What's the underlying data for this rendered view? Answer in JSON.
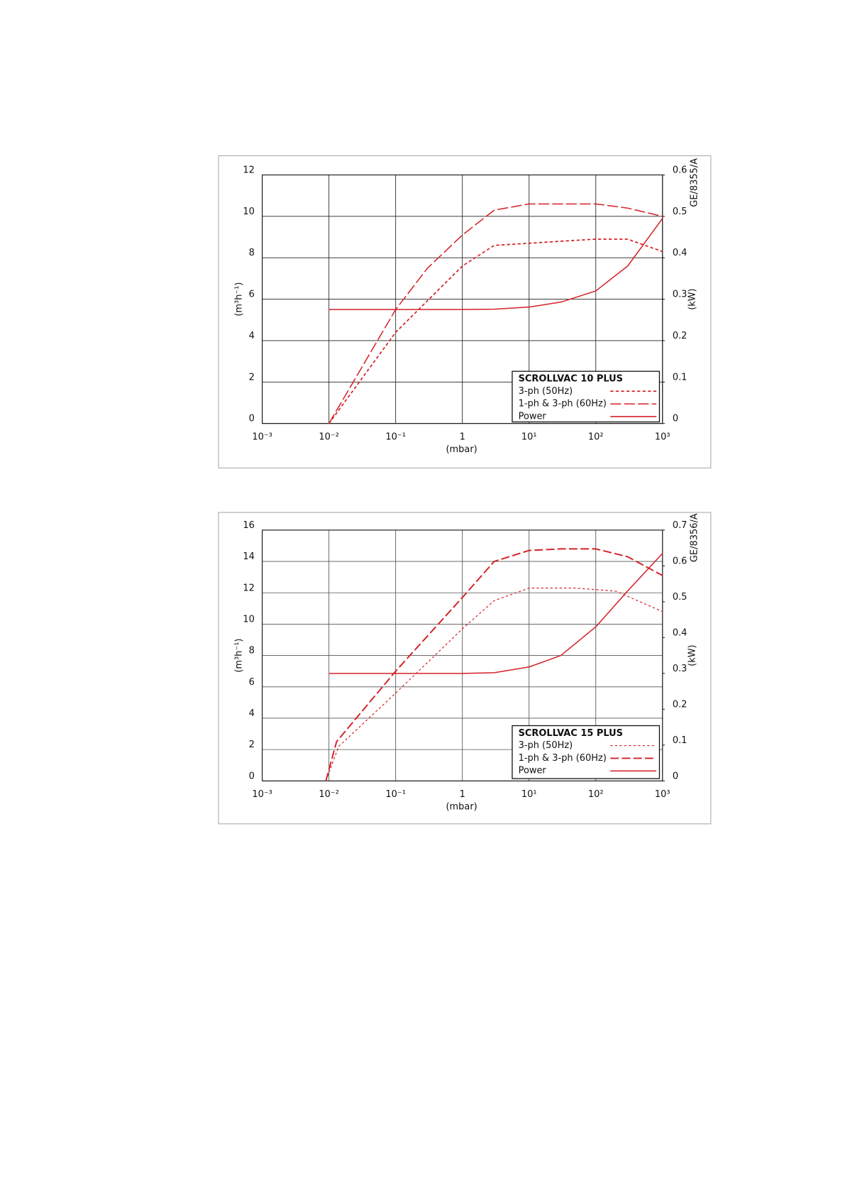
{
  "chart_data": [
    {
      "type": "line",
      "legend_title": "SCROLLVAC 10 PLUS",
      "code": "GE/8355/A",
      "xlabel": "(mbar)",
      "ylabel": "(m³h⁻¹)",
      "y2label": "(kW)",
      "log_x": true,
      "grid": true,
      "legend": "lower right",
      "xlim": [
        0.001,
        1000
      ],
      "xticks": [
        {
          "value": 0.001,
          "label": "10⁻³"
        },
        {
          "value": 0.01,
          "label": "10⁻²"
        },
        {
          "value": 0.1,
          "label": "10⁻¹"
        },
        1,
        {
          "value": 10,
          "label": "10¹"
        },
        {
          "value": 100,
          "label": "10²"
        },
        {
          "value": 1000,
          "label": "10³"
        }
      ],
      "ylim": [
        0,
        12
      ],
      "yticks": [
        0,
        2,
        4,
        6,
        8,
        10,
        12
      ],
      "y2lim": [
        0,
        0.6
      ],
      "y2ticks": [
        0,
        0.1,
        0.2,
        0.3,
        0.4,
        0.5,
        0.6
      ],
      "series": [
        {
          "name": "3-ph (50Hz)",
          "color": "#d42027",
          "x": [
            0.01,
            0.1,
            1,
            3,
            10,
            30,
            100,
            300,
            1000
          ],
          "values": [
            0,
            4.4,
            7.6,
            8.6,
            8.7,
            8.8,
            8.9,
            8.9,
            8.3
          ]
        },
        {
          "name": "1-ph & 3-ph (60Hz)",
          "color": "#d42027",
          "x": [
            0.01,
            0.1,
            0.3,
            1,
            3,
            10,
            100,
            300,
            1000
          ],
          "values": [
            0,
            5.5,
            7.5,
            9.1,
            10.3,
            10.6,
            10.6,
            10.4,
            10.0
          ]
        },
        {
          "name": "Power",
          "color": "#d42027",
          "axis": "y2",
          "x": [
            0.01,
            1,
            3,
            10,
            30,
            100,
            300,
            1000
          ],
          "values": [
            0.275,
            0.275,
            0.276,
            0.281,
            0.293,
            0.32,
            0.38,
            0.495
          ]
        }
      ]
    },
    {
      "type": "line",
      "legend_title": "SCROLLVAC 15 PLUS",
      "code": "GE/8356/A",
      "xlabel": "(mbar)",
      "ylabel": "(m³h⁻¹)",
      "y2label": "(kW)",
      "log_x": true,
      "grid": true,
      "legend": "lower right",
      "xlim": [
        0.001,
        1000
      ],
      "xticks": [
        {
          "value": 0.001,
          "label": "10⁻³"
        },
        {
          "value": 0.01,
          "label": "10⁻²"
        },
        {
          "value": 0.1,
          "label": "10⁻¹"
        },
        1,
        {
          "value": 10,
          "label": "10¹"
        },
        {
          "value": 100,
          "label": "10²"
        },
        {
          "value": 1000,
          "label": "10³"
        }
      ],
      "ylim": [
        0,
        16
      ],
      "yticks": [
        0,
        2,
        4,
        6,
        8,
        10,
        12,
        14,
        16
      ],
      "y2lim": [
        0,
        0.7
      ],
      "y2ticks": [
        0,
        0.1,
        0.2,
        0.3,
        0.4,
        0.5,
        0.6,
        0.7
      ],
      "series": [
        {
          "name": "3-ph (50Hz)",
          "color": "#d42027",
          "x": [
            0.009,
            0.014,
            0.1,
            1,
            3,
            10,
            50,
            200,
            1000
          ],
          "values": [
            0,
            2.2,
            5.6,
            9.7,
            11.5,
            12.3,
            12.3,
            12.1,
            10.8
          ]
        },
        {
          "name": "1-ph & 3-ph (60Hz)",
          "color": "#d42027",
          "x": [
            0.009,
            0.013,
            0.1,
            1,
            3,
            10,
            30,
            100,
            300,
            1000
          ],
          "values": [
            0,
            2.5,
            7,
            11.7,
            14.0,
            14.7,
            14.8,
            14.8,
            14.3,
            13.1
          ]
        },
        {
          "name": "Power",
          "color": "#d42027",
          "axis": "y2",
          "x": [
            0.01,
            1,
            3,
            10,
            30,
            100,
            300,
            1000
          ],
          "values": [
            0.3,
            0.3,
            0.302,
            0.318,
            0.35,
            0.43,
            0.53,
            0.635
          ]
        }
      ]
    }
  ]
}
